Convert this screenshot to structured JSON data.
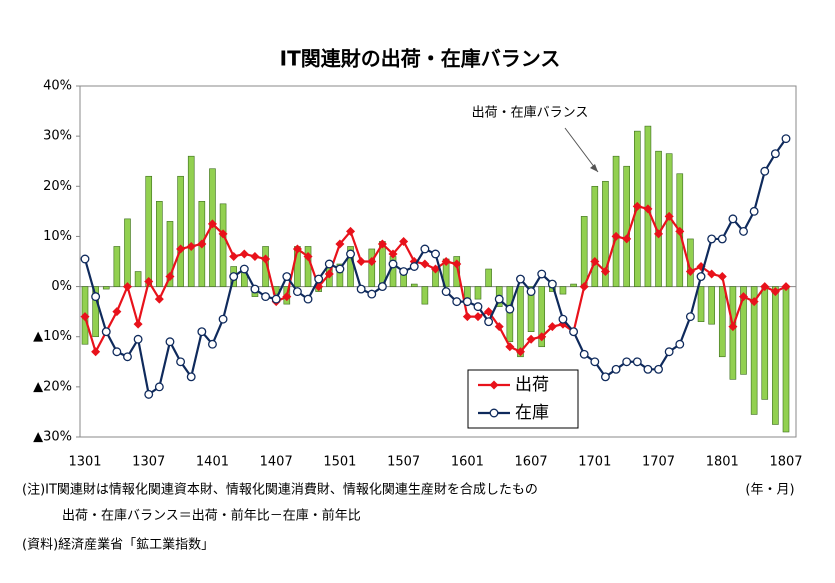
{
  "chart_data": {
    "type": "bar_line",
    "title": "IT関連財の出荷・在庫バランス",
    "annotation": "出荷・在庫バランス",
    "x_unit": "(年・月)",
    "notes": [
      "(注)IT関連財は情報化関連資本財、情報化関連消費財、情報化関連生産財を合成したもの",
      "出荷・在庫バランス＝出荷・前年比－在庫・前年比",
      "(資料)経済産業省「鉱工業指数」"
    ],
    "categories": [
      "1301",
      null,
      null,
      null,
      null,
      null,
      "1307",
      null,
      null,
      null,
      null,
      null,
      "1401",
      null,
      null,
      null,
      null,
      null,
      "1407",
      null,
      null,
      null,
      null,
      null,
      "1501",
      null,
      null,
      null,
      null,
      null,
      "1507",
      null,
      null,
      null,
      null,
      null,
      "1601",
      null,
      null,
      null,
      null,
      null,
      "1607",
      null,
      null,
      null,
      null,
      null,
      "1701",
      null,
      null,
      null,
      null,
      null,
      "1707",
      null,
      null,
      null,
      null,
      null,
      "1801",
      null,
      null,
      null,
      null,
      null,
      "1807"
    ],
    "bar": {
      "color": "#92d050",
      "edge": "#3a6b1c",
      "values": [
        -11.5,
        -10,
        -0.5,
        8,
        13.5,
        3,
        22,
        17,
        13,
        22,
        26,
        17,
        23.5,
        16.5,
        4,
        3.5,
        -2,
        8,
        -1.5,
        -3.5,
        8,
        8,
        -1,
        4,
        4.5,
        8,
        -1,
        7.5,
        9,
        6,
        3,
        0.5,
        -3.5,
        3.5,
        5.5,
        6,
        -3,
        -2.5,
        3.5,
        -4,
        -11,
        -14,
        -9,
        -12,
        -1,
        -1.5,
        0.5,
        14,
        20,
        21,
        26,
        24,
        31,
        32,
        27,
        26.5,
        22.5,
        9.5,
        -7,
        -7.5,
        -14,
        -18.5,
        -17.5,
        -25.5,
        -22.5,
        -27.5,
        -29
      ]
    },
    "series": [
      {
        "name": "出荷",
        "color": "#e8121b",
        "marker": "diamond",
        "values": [
          -6,
          -13,
          -9,
          -5,
          0,
          -7.5,
          1,
          -2.5,
          2,
          7.5,
          8,
          8.5,
          12.5,
          10.5,
          6,
          6.5,
          6,
          5.5,
          -3,
          -2,
          7.5,
          6,
          0,
          2.5,
          8.5,
          11,
          5,
          5,
          8.5,
          6.5,
          9,
          5,
          4.5,
          3.5,
          5,
          4.5,
          -6,
          -6,
          -5,
          -8,
          -12,
          -13,
          -10.5,
          -10,
          -8,
          -7.5,
          -9,
          0,
          5,
          3,
          10,
          9.5,
          16,
          15.5,
          10.5,
          14,
          11,
          3,
          4,
          2.5,
          2,
          -8,
          -2,
          -3,
          0,
          -1,
          0
        ]
      },
      {
        "name": "在庫",
        "color": "#0f2a5c",
        "marker": "circle",
        "values": [
          5.5,
          -2,
          -9,
          -13,
          -14,
          -10.5,
          -21.5,
          -20,
          -11,
          -15,
          -18,
          -9,
          -11.5,
          -6.5,
          2,
          3.5,
          -0.5,
          -2,
          -2.5,
          2,
          -1,
          -2.5,
          1.5,
          4.5,
          3.5,
          6.5,
          -0.5,
          -1.5,
          0,
          4.5,
          3,
          4,
          7.5,
          6.5,
          -1,
          -3,
          -3,
          -4,
          -7,
          -2.5,
          -4.5,
          1.5,
          -1,
          2.5,
          0.5,
          -6.5,
          -9,
          -13.5,
          -15,
          -18,
          -16.5,
          -15,
          -15,
          -16.5,
          -16.5,
          -13,
          -11.5,
          -6,
          2,
          9.5,
          9.5,
          13.5,
          11,
          15,
          23,
          26.5,
          29.5
        ]
      }
    ],
    "ylim": [
      -30,
      40
    ],
    "yticks": [
      {
        "value": -30,
        "label": "▲30%"
      },
      {
        "value": -20,
        "label": "▲20%"
      },
      {
        "value": -10,
        "label": "▲10%"
      },
      {
        "value": 0,
        "label": "0%"
      },
      {
        "value": 10,
        "label": "10%"
      },
      {
        "value": 20,
        "label": "20%"
      },
      {
        "value": 30,
        "label": "30%"
      },
      {
        "value": 40,
        "label": "40%"
      }
    ],
    "grid": false
  }
}
